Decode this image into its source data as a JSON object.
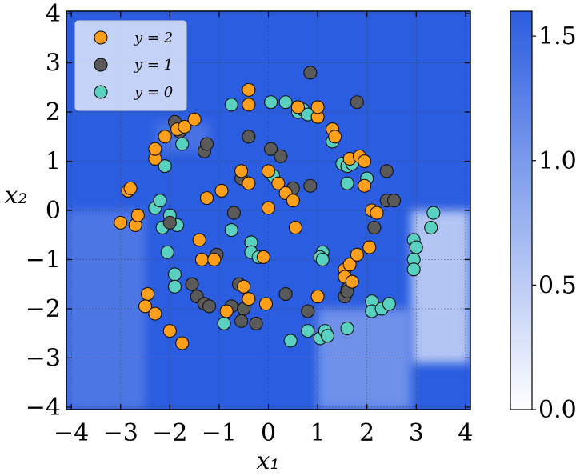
{
  "chart_data": {
    "type": "scatter",
    "title": "",
    "xlabel": "x₁",
    "ylabel": "x₂",
    "xlim": [
      -4.1,
      4.1
    ],
    "ylim": [
      -4.05,
      4.05
    ],
    "x_ticks": [
      -4,
      -3,
      -2,
      -1,
      0,
      1,
      2,
      3,
      4
    ],
    "y_ticks": [
      -4,
      -3,
      -2,
      -1,
      0,
      1,
      2,
      3,
      4
    ],
    "x_tick_labels": [
      "−4",
      "−3",
      "−2",
      "−1",
      "0",
      "1",
      "2",
      "3",
      "4"
    ],
    "y_tick_labels": [
      "−4",
      "−3",
      "−2",
      "−1",
      "0",
      "1",
      "2",
      "3",
      "4"
    ],
    "grid": true,
    "legend_position": "top-left",
    "background": {
      "kind": "heatmap",
      "base_color": "#2b5de0",
      "light_regions": [
        {
          "x": [
            2.9,
            4.1
          ],
          "y": [
            -3.1,
            0.0
          ],
          "value": 0.4
        },
        {
          "x": [
            1.0,
            2.9
          ],
          "y": [
            -4.05,
            -2.0
          ],
          "value": 1.0
        },
        {
          "x": [
            -4.1,
            -2.5
          ],
          "y": [
            -4.05,
            0.0
          ],
          "value": 1.3
        },
        {
          "x": [
            -2.3,
            -1.2
          ],
          "y": [
            1.2,
            1.8
          ],
          "value": 1.35
        }
      ]
    },
    "colorbar": {
      "range": [
        0.0,
        1.6
      ],
      "ticks": [
        0.0,
        0.5,
        1.0,
        1.5
      ],
      "tick_labels": [
        "0.0",
        "0.5",
        "1.0",
        "1.5"
      ],
      "low_color": "#ffffff",
      "high_color": "#2b5de0"
    },
    "series": [
      {
        "name": "y = 2",
        "color": "#ff9f1c",
        "points": [
          [
            -3.0,
            -0.25
          ],
          [
            -2.7,
            -0.3
          ],
          [
            -2.65,
            -0.1
          ],
          [
            -2.85,
            0.4
          ],
          [
            -2.8,
            0.45
          ],
          [
            -2.3,
            1.05
          ],
          [
            -2.3,
            1.25
          ],
          [
            -2.1,
            1.5
          ],
          [
            -1.85,
            1.65
          ],
          [
            -1.7,
            1.7
          ],
          [
            -1.5,
            1.85
          ],
          [
            -1.25,
            0.25
          ],
          [
            -0.95,
            0.4
          ],
          [
            -0.55,
            0.8
          ],
          [
            -0.4,
            0.55
          ],
          [
            -0.4,
            2.15
          ],
          [
            -0.4,
            2.45
          ],
          [
            0.0,
            0.05
          ],
          [
            -0.1,
            -0.95
          ],
          [
            -1.4,
            -0.6
          ],
          [
            -1.35,
            -1.0
          ],
          [
            -1.1,
            -1.0
          ],
          [
            -0.5,
            -1.55
          ],
          [
            -0.4,
            -1.8
          ],
          [
            -0.05,
            -1.9
          ],
          [
            -2.45,
            -1.7
          ],
          [
            -2.5,
            -1.95
          ],
          [
            -2.3,
            -2.1
          ],
          [
            -2.0,
            -2.45
          ],
          [
            -1.75,
            -2.7
          ],
          [
            -0.85,
            -2.05
          ],
          [
            0.0,
            0.8
          ],
          [
            0.2,
            0.55
          ],
          [
            0.35,
            0.35
          ],
          [
            0.5,
            0.2
          ],
          [
            0.55,
            -0.35
          ],
          [
            0.6,
            2.1
          ],
          [
            1.0,
            1.9
          ],
          [
            1.0,
            2.1
          ],
          [
            1.3,
            1.65
          ],
          [
            1.35,
            1.5
          ],
          [
            1.65,
            1.05
          ],
          [
            1.85,
            1.1
          ],
          [
            1.0,
            -1.75
          ],
          [
            1.55,
            -1.2
          ],
          [
            1.55,
            -1.35
          ],
          [
            1.65,
            -1.1
          ],
          [
            1.7,
            -1.45
          ],
          [
            1.8,
            -0.9
          ],
          [
            1.95,
            1.0
          ],
          [
            1.95,
            0.5
          ],
          [
            2.1,
            0.0
          ],
          [
            2.2,
            -0.05
          ],
          [
            2.05,
            -0.75
          ]
        ]
      },
      {
        "name": "y = 1",
        "color": "#5a5a5a",
        "points": [
          [
            -2.0,
            -0.25
          ],
          [
            -1.8,
            1.6
          ],
          [
            -1.9,
            1.8
          ],
          [
            -1.3,
            1.2
          ],
          [
            -1.25,
            1.35
          ],
          [
            -0.55,
            0.65
          ],
          [
            -0.7,
            -0.05
          ],
          [
            -0.6,
            -1.5
          ],
          [
            -1.05,
            -0.9
          ],
          [
            -1.55,
            -1.5
          ],
          [
            -1.45,
            -1.75
          ],
          [
            -1.3,
            -1.9
          ],
          [
            -1.2,
            -1.95
          ],
          [
            -0.75,
            -1.95
          ],
          [
            -0.5,
            -2.0
          ],
          [
            -0.55,
            -2.25
          ],
          [
            -0.25,
            -2.3
          ],
          [
            -0.4,
            1.5
          ],
          [
            0.05,
            1.25
          ],
          [
            0.25,
            1.1
          ],
          [
            0.5,
            0.45
          ],
          [
            0.85,
            0.5
          ],
          [
            0.85,
            2.8
          ],
          [
            1.8,
            2.2
          ],
          [
            0.8,
            -2.05
          ],
          [
            1.6,
            -1.6
          ],
          [
            1.55,
            -1.75
          ],
          [
            1.6,
            -1.65
          ],
          [
            2.4,
            0.2
          ],
          [
            2.55,
            0.2
          ],
          [
            2.4,
            0.8
          ],
          [
            2.15,
            -0.35
          ],
          [
            0.35,
            -1.7
          ]
        ]
      },
      {
        "name": "y = 0",
        "color": "#5ad0c0",
        "points": [
          [
            -2.3,
            0.05
          ],
          [
            -2.2,
            0.2
          ],
          [
            -2.15,
            -0.35
          ],
          [
            -2.0,
            -0.1
          ],
          [
            -2.1,
            0.9
          ],
          [
            -1.75,
            1.35
          ],
          [
            -1.9,
            -1.3
          ],
          [
            -1.9,
            -1.55
          ],
          [
            -2.05,
            -0.85
          ],
          [
            -0.75,
            2.15
          ],
          [
            -0.75,
            -0.4
          ],
          [
            -0.9,
            -2.3
          ],
          [
            -0.35,
            -0.65
          ],
          [
            -0.35,
            -0.85
          ],
          [
            -0.2,
            -0.95
          ],
          [
            0.1,
            0.7
          ],
          [
            0.05,
            2.2
          ],
          [
            0.35,
            2.2
          ],
          [
            0.6,
            2.0
          ],
          [
            0.7,
            2.05
          ],
          [
            0.8,
            1.95
          ],
          [
            1.3,
            1.4
          ],
          [
            1.5,
            0.95
          ],
          [
            1.6,
            0.9
          ],
          [
            1.7,
            0.95
          ],
          [
            1.6,
            0.55
          ],
          [
            1.1,
            -0.85
          ],
          [
            1.05,
            -0.95
          ],
          [
            1.1,
            -1.0
          ],
          [
            0.8,
            -2.45
          ],
          [
            1.05,
            -2.6
          ],
          [
            1.15,
            -2.45
          ],
          [
            1.2,
            -2.55
          ],
          [
            1.6,
            -2.4
          ],
          [
            2.1,
            -1.85
          ],
          [
            2.1,
            -2.05
          ],
          [
            2.3,
            -2.0
          ],
          [
            2.45,
            -1.9
          ],
          [
            2.95,
            -0.6
          ],
          [
            3.0,
            -0.75
          ],
          [
            2.95,
            -1.0
          ],
          [
            2.95,
            -1.2
          ],
          [
            3.35,
            -0.05
          ],
          [
            3.3,
            -0.35
          ],
          [
            0.45,
            -2.65
          ],
          [
            2.0,
            0.65
          ],
          [
            -1.85,
            -0.3
          ]
        ]
      }
    ]
  }
}
